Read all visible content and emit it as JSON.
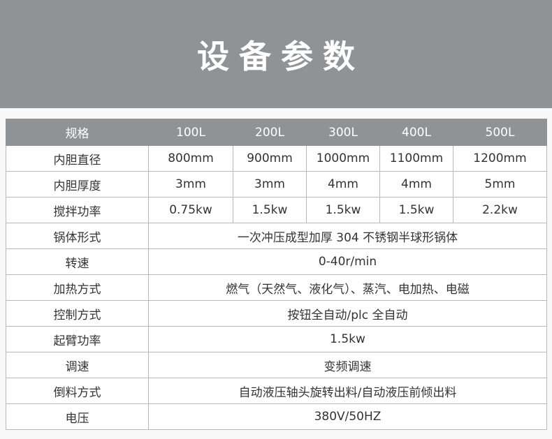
{
  "title": "设备参数",
  "table": {
    "header": [
      "规格",
      "100L",
      "200L",
      "300L",
      "400L",
      "500L"
    ],
    "rows": [
      {
        "label": "内胆直径",
        "values": [
          "800mm",
          "900mm",
          "1000mm",
          "1100mm",
          "1200mm"
        ]
      },
      {
        "label": "内胆厚度",
        "values": [
          "3mm",
          "3mm",
          "4mm",
          "4mm",
          "5mm"
        ]
      },
      {
        "label": "搅拌功率",
        "values": [
          "0.75kw",
          "1.5kw",
          "1.5kw",
          "1.5kw",
          "2.2kw"
        ]
      },
      {
        "label": "锅体形式",
        "values": [
          "一次冲压成型加厚 304 不锈钢半球形锅体"
        ]
      },
      {
        "label": "转速",
        "values": [
          "0-40r/min"
        ]
      },
      {
        "label": "加热方式",
        "values": [
          "燃气（天然气、液化气）、蒸汽、电加热、电磁"
        ]
      },
      {
        "label": "控制方式",
        "values": [
          "按钮全自动/plc 全自动"
        ]
      },
      {
        "label": "起臂功率",
        "values": [
          "1.5kw"
        ]
      },
      {
        "label": "调速",
        "values": [
          "变频调速"
        ]
      },
      {
        "label": "倒料方式",
        "values": [
          "自动液压轴头旋转出料/自动液压前倾出料"
        ]
      },
      {
        "label": "电压",
        "values": [
          "380V/50HZ"
        ]
      }
    ]
  }
}
